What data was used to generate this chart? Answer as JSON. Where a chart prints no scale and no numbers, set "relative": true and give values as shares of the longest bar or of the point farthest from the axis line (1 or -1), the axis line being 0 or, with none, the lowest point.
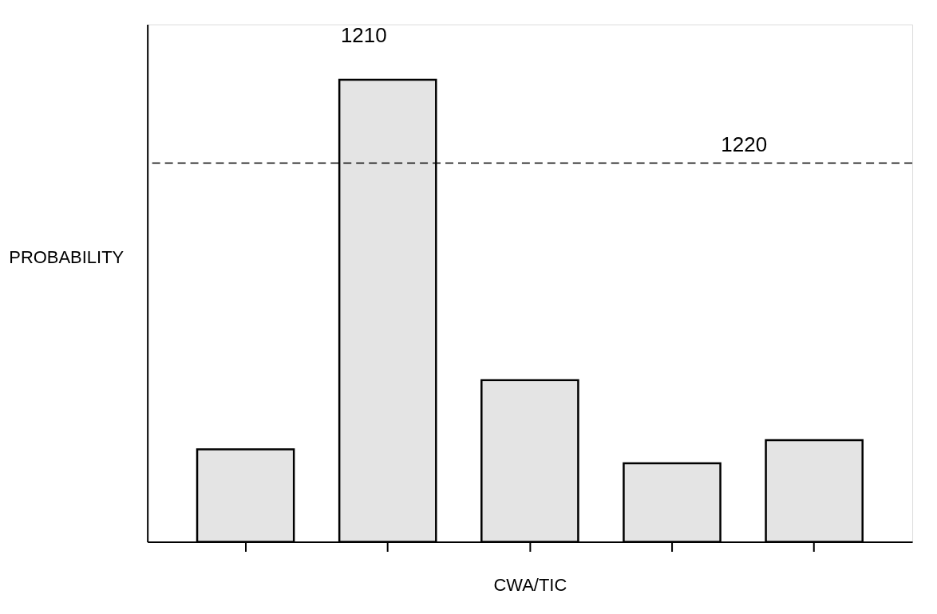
{
  "chart_data": {
    "type": "bar",
    "relative": true,
    "xlabel": "CWA/TIC",
    "ylabel": "PROBABILITY",
    "categories": [
      null,
      null,
      null,
      null,
      null
    ],
    "values": [
      0.2,
      1,
      0.35,
      0.17,
      0.22
    ],
    "color": "#e4e4e4",
    "ref_lines": [
      {
        "axis": "y",
        "value": 0.82,
        "line_style": "dashed",
        "color": "#000000"
      }
    ],
    "annotations": [
      "1210",
      {
        "text": "1220",
        "y": 0.82
      }
    ],
    "grid": false
  }
}
